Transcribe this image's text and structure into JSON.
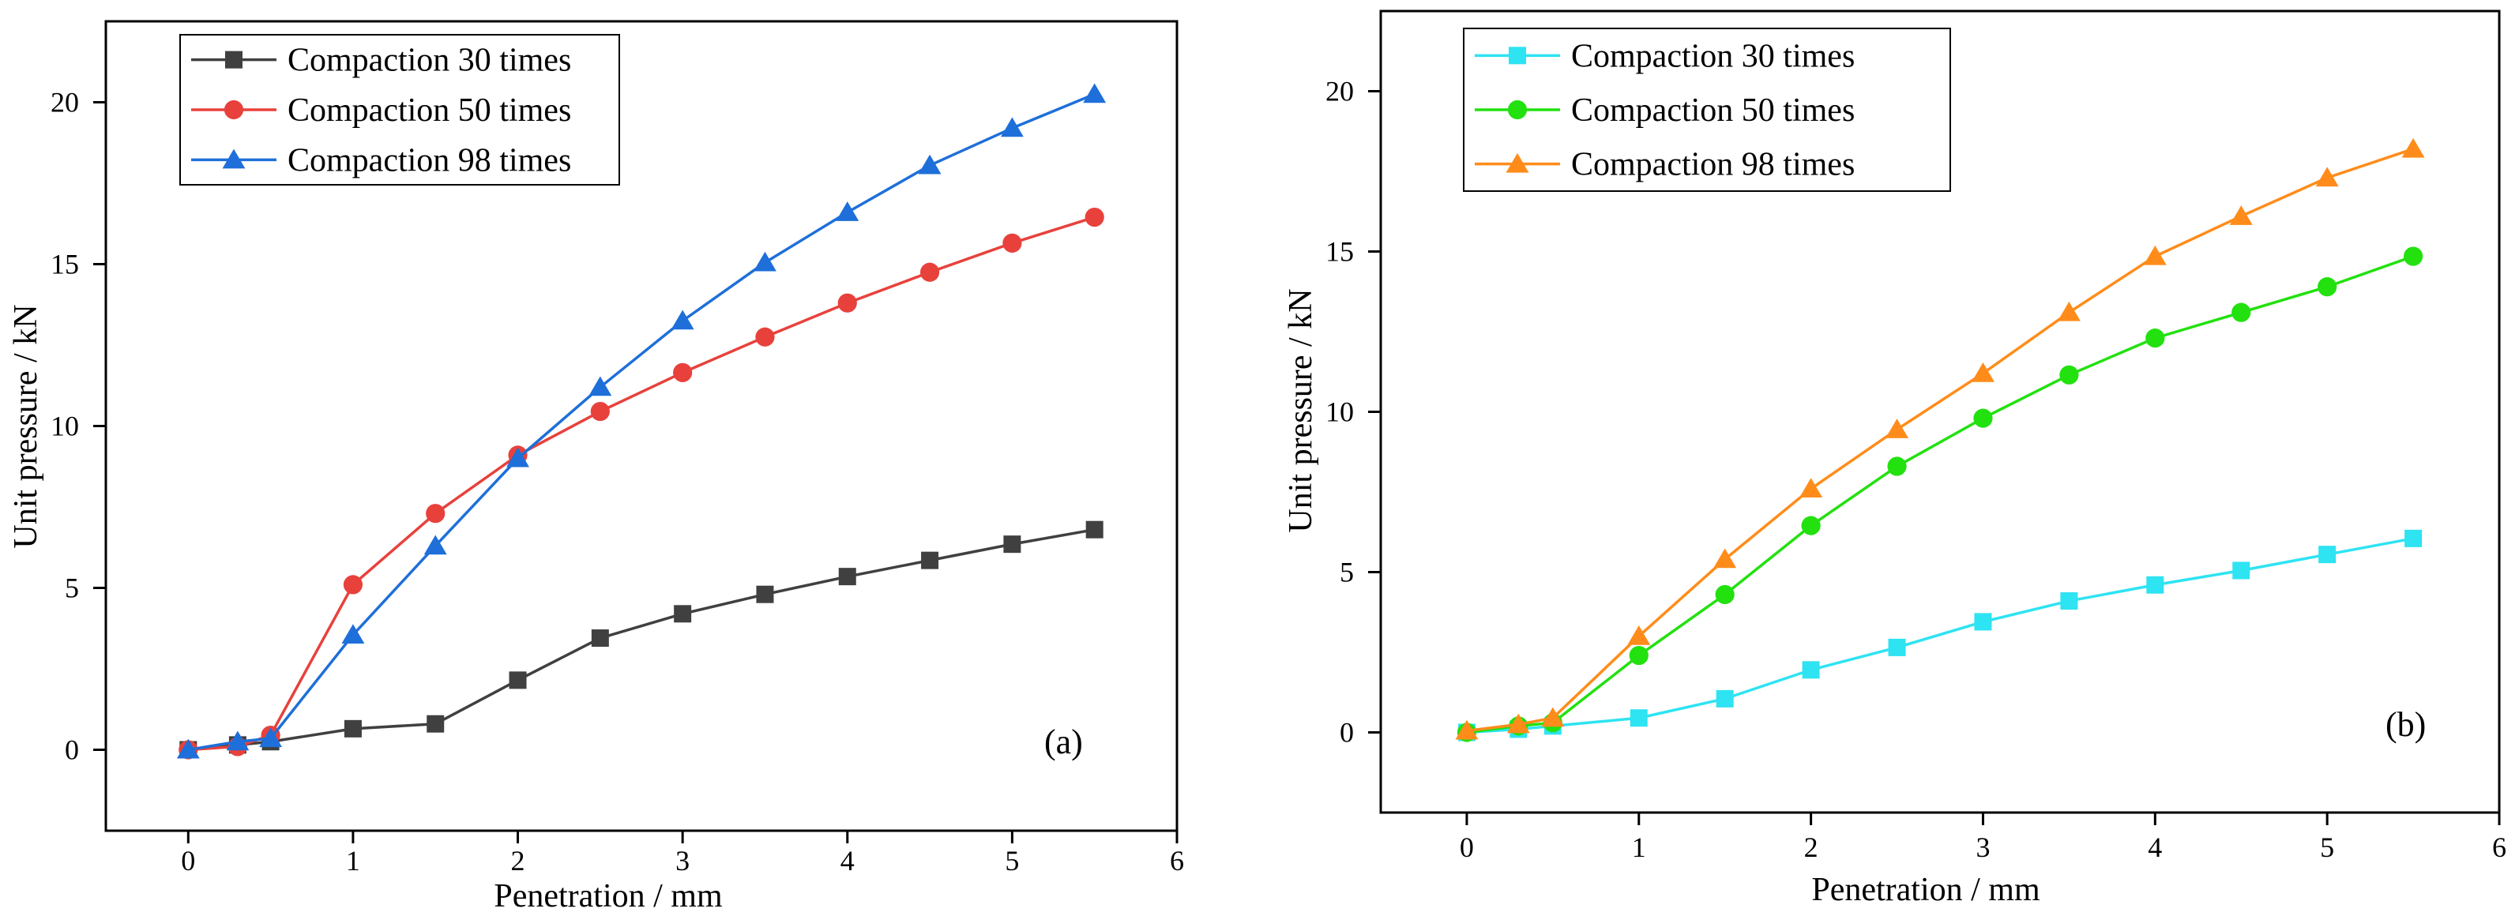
{
  "chart_data": [
    {
      "type": "line",
      "panel_label": "(a)",
      "xlabel": "Penetration / mm",
      "ylabel": "Unit pressure / kN",
      "xlim": [
        -0.5,
        6
      ],
      "ylim": [
        -2.5,
        22.5
      ],
      "xticks": [
        0,
        1,
        2,
        3,
        4,
        5,
        6
      ],
      "yticks": [
        0,
        5,
        10,
        15,
        20
      ],
      "x": [
        0,
        0.3,
        0.5,
        1,
        1.5,
        2,
        2.5,
        3,
        3.5,
        4,
        4.5,
        5,
        5.5
      ],
      "legend_position": "top-left",
      "series": [
        {
          "name": "Compaction 30 times",
          "color": "#404040",
          "marker": "square",
          "values": [
            0,
            0.15,
            0.25,
            0.65,
            0.8,
            2.15,
            3.45,
            4.2,
            4.8,
            5.35,
            5.85,
            6.35,
            6.8
          ]
        },
        {
          "name": "Compaction 50 times",
          "color": "#e8413c",
          "marker": "circle",
          "values": [
            0,
            0.1,
            0.45,
            5.1,
            7.3,
            9.1,
            10.45,
            11.65,
            12.75,
            13.8,
            14.75,
            15.65,
            16.45
          ]
        },
        {
          "name": "Compaction 98 times",
          "color": "#1e6fd9",
          "marker": "triangle",
          "values": [
            0,
            0.25,
            0.35,
            3.55,
            6.3,
            9.0,
            11.2,
            13.25,
            15.05,
            16.6,
            18.05,
            19.2,
            20.25
          ]
        }
      ]
    },
    {
      "type": "line",
      "panel_label": "(b)",
      "xlabel": "Penetration / mm",
      "ylabel": "Unit pressure / kN",
      "xlim": [
        -0.5,
        6
      ],
      "ylim": [
        -2.5,
        22.5
      ],
      "xticks": [
        0,
        1,
        2,
        3,
        4,
        5,
        6
      ],
      "yticks": [
        0,
        5,
        10,
        15,
        20
      ],
      "x": [
        0,
        0.3,
        0.5,
        1,
        1.5,
        2,
        2.5,
        3,
        3.5,
        4,
        4.5,
        5,
        5.5
      ],
      "legend_position": "top-left",
      "series": [
        {
          "name": "Compaction 30 times",
          "color": "#2ee3f2",
          "marker": "square",
          "values": [
            0,
            0.1,
            0.2,
            0.45,
            1.05,
            1.95,
            2.65,
            3.45,
            4.1,
            4.6,
            5.05,
            5.55,
            6.05
          ]
        },
        {
          "name": "Compaction 50 times",
          "color": "#22e10f",
          "marker": "circle",
          "values": [
            0,
            0.2,
            0.3,
            2.4,
            4.3,
            6.45,
            8.3,
            9.8,
            11.15,
            12.3,
            13.1,
            13.9,
            14.85
          ]
        },
        {
          "name": "Compaction 98 times",
          "color": "#ff8c1a",
          "marker": "triangle",
          "values": [
            0.05,
            0.25,
            0.45,
            3.0,
            5.4,
            7.6,
            9.45,
            11.2,
            13.1,
            14.85,
            16.1,
            17.3,
            18.2
          ]
        }
      ]
    }
  ]
}
